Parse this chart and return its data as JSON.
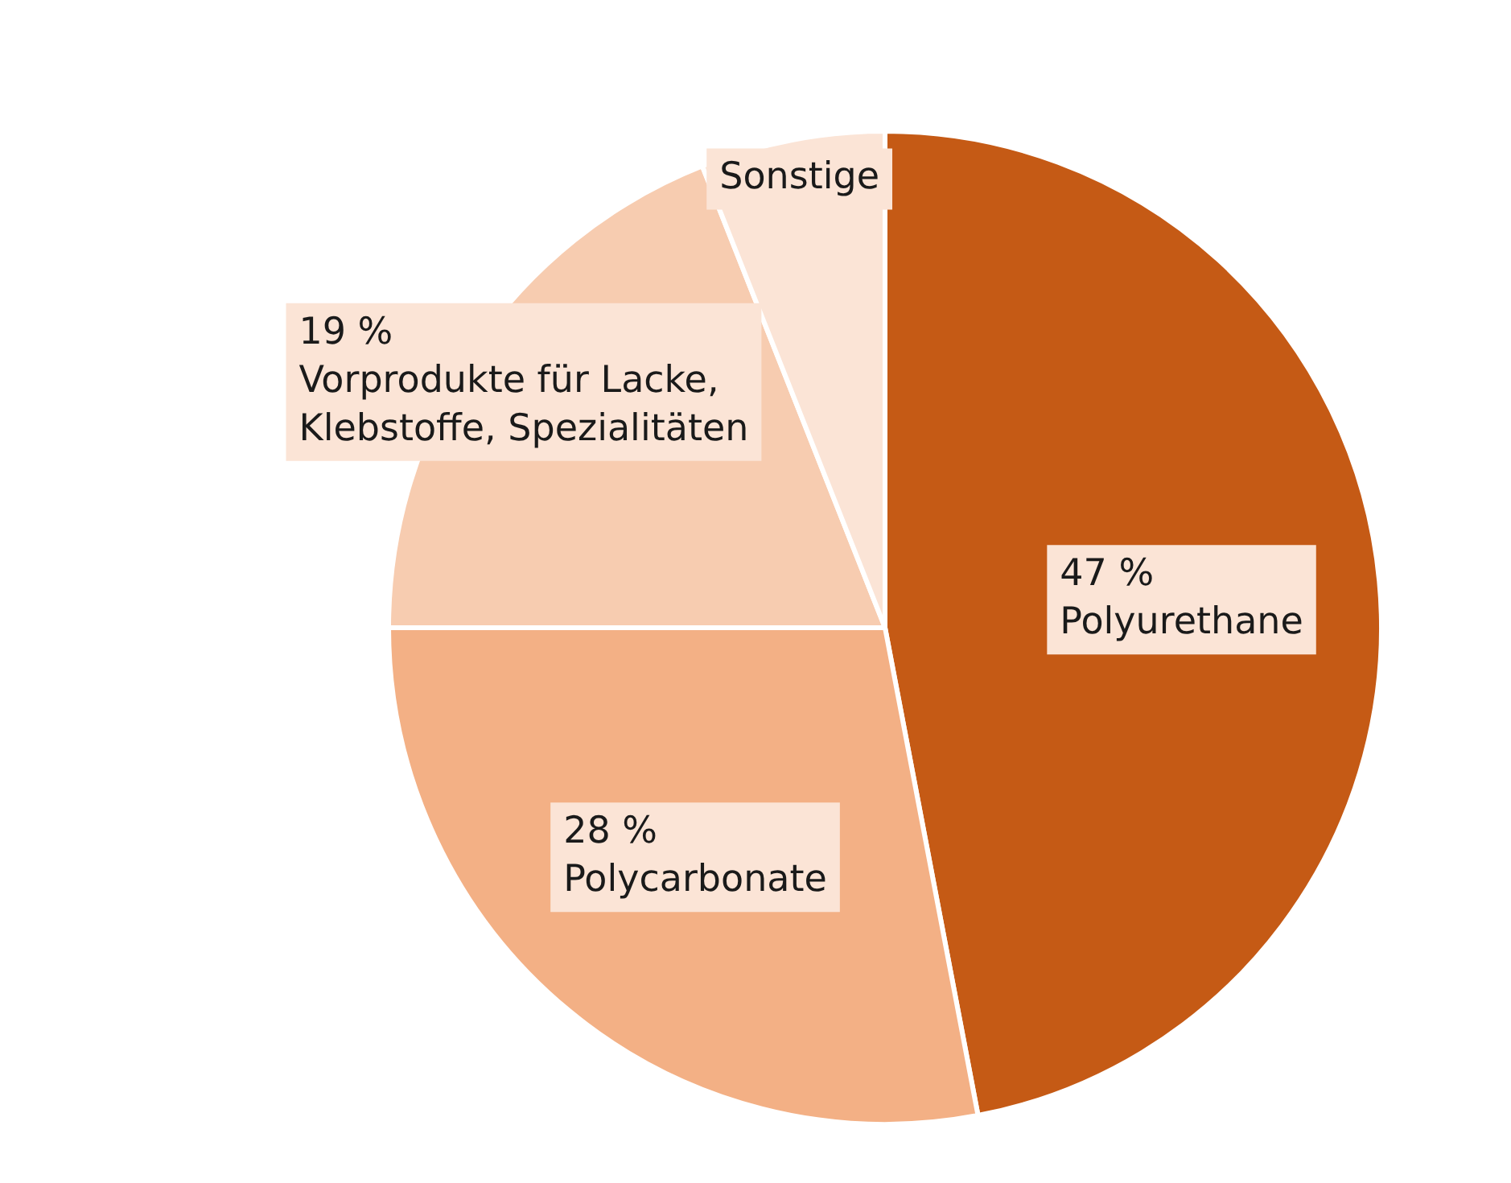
{
  "chart_data": {
    "type": "pie",
    "categories": [
      "Polyurethane",
      "Polycarbonate",
      "Vorprodukte für Lacke, Klebstoffe, Spezialitäten",
      "Sonstige"
    ],
    "values": [
      47,
      28,
      19,
      6
    ],
    "value_labels": [
      "47 %",
      "28 %",
      "19 %",
      null
    ],
    "colors": [
      "#c55a15",
      "#f3b085",
      "#f7ccb0",
      "#fbe4d6"
    ],
    "legend": false
  }
}
